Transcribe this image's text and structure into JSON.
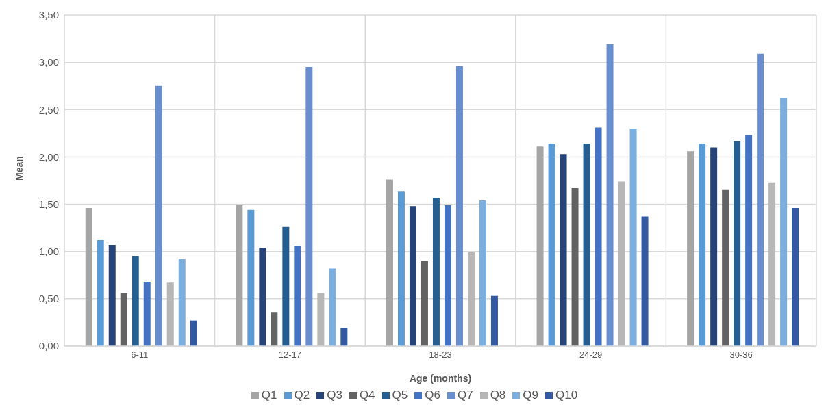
{
  "chart_data": {
    "type": "bar",
    "xlabel": "Age (months)",
    "ylabel": "Mean",
    "categories": [
      "6-11",
      "12-17",
      "18-23",
      "24-29",
      "30-36"
    ],
    "series": [
      {
        "name": "Q1",
        "color": "#a5a5a5",
        "values": [
          1.46,
          1.49,
          1.76,
          2.11,
          2.06
        ]
      },
      {
        "name": "Q2",
        "color": "#5b9bd5",
        "values": [
          1.12,
          1.44,
          1.64,
          2.14,
          2.14
        ]
      },
      {
        "name": "Q3",
        "color": "#264478",
        "values": [
          1.07,
          1.04,
          1.48,
          2.03,
          2.1
        ]
      },
      {
        "name": "Q4",
        "color": "#636363",
        "values": [
          0.56,
          0.36,
          0.9,
          1.67,
          1.65
        ]
      },
      {
        "name": "Q5",
        "color": "#255e91",
        "values": [
          0.95,
          1.26,
          1.57,
          2.14,
          2.17
        ]
      },
      {
        "name": "Q6",
        "color": "#4472c4",
        "values": [
          0.68,
          1.06,
          1.49,
          2.31,
          2.23
        ]
      },
      {
        "name": "Q7",
        "color": "#698ed0",
        "values": [
          2.75,
          2.95,
          2.96,
          3.19,
          3.09
        ]
      },
      {
        "name": "Q8",
        "color": "#b7b7b7",
        "values": [
          0.67,
          0.56,
          0.99,
          1.74,
          1.73
        ]
      },
      {
        "name": "Q9",
        "color": "#7cafdd",
        "values": [
          0.92,
          0.82,
          1.54,
          2.3,
          2.62
        ]
      },
      {
        "name": "Q10",
        "color": "#335aa1",
        "values": [
          0.27,
          0.19,
          0.53,
          1.37,
          1.46
        ]
      }
    ],
    "ylim": [
      0,
      3.5
    ],
    "yticks": [
      {
        "value": 0,
        "label": "0,00"
      },
      {
        "value": 0.5,
        "label": "0,50"
      },
      {
        "value": 1,
        "label": "1,00"
      },
      {
        "value": 1.5,
        "label": "1,50"
      },
      {
        "value": 2,
        "label": "2,00"
      },
      {
        "value": 2.5,
        "label": "2,50"
      },
      {
        "value": 3,
        "label": "3,00"
      },
      {
        "value": 3.5,
        "label": "3,50"
      }
    ],
    "grid": true,
    "legend": "bottom"
  }
}
